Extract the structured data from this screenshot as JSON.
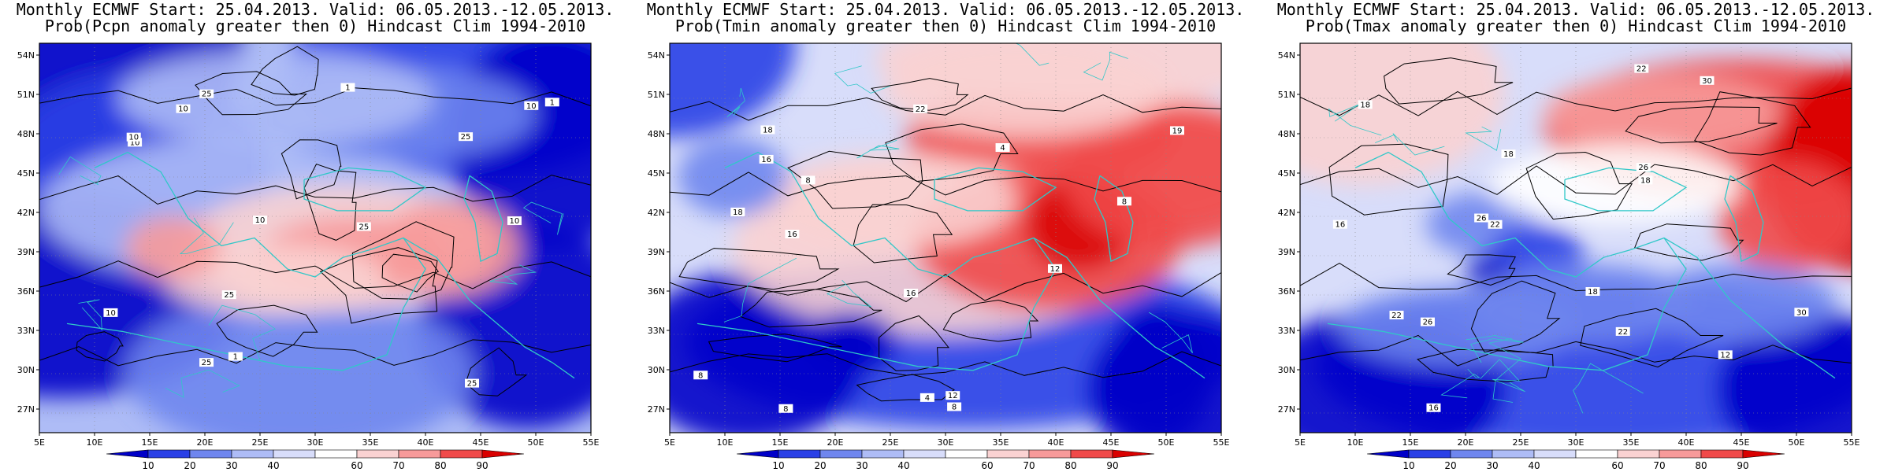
{
  "panels": [
    {
      "title_line1": "Monthly ECMWF Start: 25.04.2013. Valid: 06.05.2013.-12.05.2013.",
      "title_line2": "Prob(Pcpn anomaly greater then 0) Hindcast Clim 1994-2010",
      "variable": "Pcpn",
      "contour_labels": [
        "10",
        "10",
        "10",
        "25",
        "10",
        "10",
        "25",
        "25",
        "25",
        "10",
        "25",
        "25",
        "10",
        "1",
        "1",
        "1"
      ]
    },
    {
      "title_line1": "Monthly ECMWF Start: 25.04.2013. Valid: 06.05.2013.-12.05.2013.",
      "title_line2": "Prob(Tmin anomaly greater then 0) Hindcast Clim 1994-2010",
      "variable": "Tmin",
      "contour_labels": [
        "8",
        "4",
        "8",
        "12",
        "12",
        "8",
        "4",
        "8",
        "16",
        "18",
        "16",
        "19",
        "22",
        "18",
        "16",
        "8"
      ]
    },
    {
      "title_line1": "Monthly ECMWF Start: 25.04.2013. Valid: 06.05.2013.-12.05.2013.",
      "title_line2": "Prob(Tmax anomaly greater then 0) Hindcast Clim 1994-2010",
      "variable": "Tmax",
      "contour_labels": [
        "12",
        "16",
        "18",
        "16",
        "22",
        "26",
        "22",
        "18",
        "18",
        "18",
        "22",
        "26",
        "30",
        "26",
        "30",
        "22"
      ]
    }
  ],
  "x_tick_labels": [
    "5E",
    "10E",
    "15E",
    "20E",
    "25E",
    "30E",
    "35E",
    "40E",
    "45E",
    "50E",
    "55E"
  ],
  "y_tick_labels": [
    "54N",
    "51N",
    "48N",
    "45N",
    "42N",
    "39N",
    "36N",
    "33N",
    "30N",
    "27N"
  ],
  "colorbar": {
    "tick_labels": [
      "10",
      "20",
      "30",
      "40",
      "60",
      "70",
      "80",
      "90"
    ],
    "colors": [
      "#0000c8",
      "#2a40e6",
      "#6f86ee",
      "#aebcf6",
      "#d8ddfa",
      "#ffffff",
      "#fad2d2",
      "#f79a9a",
      "#f04a4a",
      "#d90000"
    ]
  },
  "colors": {
    "coast": "#30c8c8",
    "contour": "#000000"
  }
}
